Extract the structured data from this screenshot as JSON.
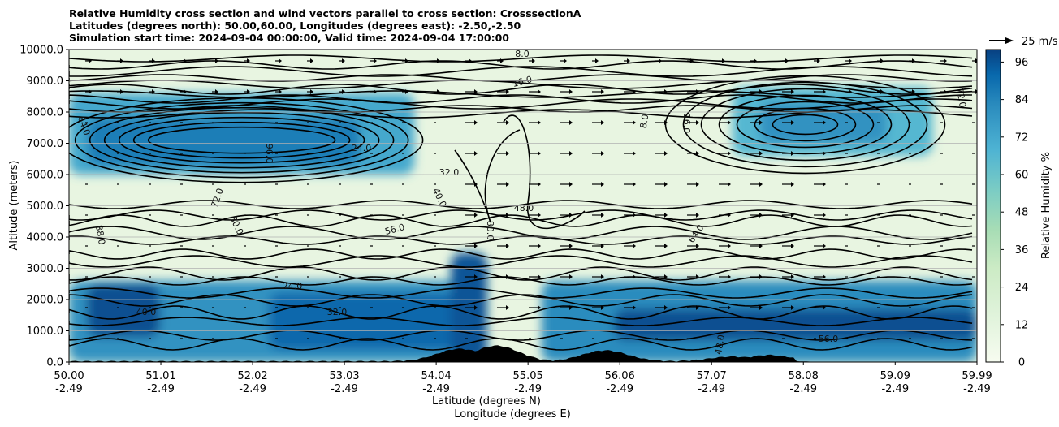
{
  "chart_data": {
    "type": "heatmap",
    "title_lines": [
      "Relative Humidity cross section and wind vectors parallel to cross section: CrosssectionA",
      "Latitudes (degrees north): 50.00,60.00, Longitudes (degrees east): -2.50,-2.50",
      "Simulation start time: 2024-09-04 00:00:00, Valid time: 2024-09-04 17:00:00"
    ],
    "xlabel": "Latitude (degrees N)",
    "xlabel2": "Longitude (degrees E)",
    "ylabel": "Altitude (meters)",
    "xlim": [
      50.0,
      59.99
    ],
    "ylim": [
      0,
      10000
    ],
    "x_ticks": [
      {
        "lat": "50.00",
        "lon": "-2.49"
      },
      {
        "lat": "51.01",
        "lon": "-2.49"
      },
      {
        "lat": "52.02",
        "lon": "-2.49"
      },
      {
        "lat": "53.03",
        "lon": "-2.49"
      },
      {
        "lat": "54.04",
        "lon": "-2.49"
      },
      {
        "lat": "55.05",
        "lon": "-2.49"
      },
      {
        "lat": "56.06",
        "lon": "-2.49"
      },
      {
        "lat": "57.07",
        "lon": "-2.49"
      },
      {
        "lat": "58.08",
        "lon": "-2.49"
      },
      {
        "lat": "59.09",
        "lon": "-2.49"
      },
      {
        "lat": "59.99",
        "lon": "-2.49"
      }
    ],
    "y_ticks": [
      "0.0",
      "1000.0",
      "2000.0",
      "3000.0",
      "4000.0",
      "5000.0",
      "6000.0",
      "7000.0",
      "8000.0",
      "9000.0",
      "10000.0"
    ],
    "grid": "horizontal",
    "colorbar": {
      "label": "Relative Humidity %",
      "ticks": [
        "0",
        "12",
        "24",
        "36",
        "48",
        "60",
        "72",
        "84",
        "96"
      ],
      "range": [
        0,
        100
      ],
      "colormap": "GnBu"
    },
    "wind_key": {
      "label": "25 m/s"
    },
    "contour_labels": [
      "8.0",
      "16.0",
      "24.0",
      "32.0",
      "40.0",
      "48.0",
      "56.0",
      "64.0",
      "72.0",
      "80.0",
      "88.0",
      "96.0"
    ],
    "rh_regions": [
      {
        "lat": [
          50.0,
          53.8
        ],
        "alt": [
          6000,
          8600
        ],
        "rh": 72
      },
      {
        "lat": [
          50.2,
          53.2
        ],
        "alt": [
          6300,
          7800
        ],
        "rh": 86
      },
      {
        "lat": [
          57.3,
          59.5
        ],
        "alt": [
          6600,
          8800
        ],
        "rh": 66
      },
      {
        "lat": [
          57.6,
          59.0
        ],
        "alt": [
          7000,
          8300
        ],
        "rh": 80
      },
      {
        "lat": [
          50.0,
          54.5
        ],
        "alt": [
          0,
          2600
        ],
        "rh": 80
      },
      {
        "lat": [
          50.2,
          51.0
        ],
        "alt": [
          800,
          2500
        ],
        "rh": 97
      },
      {
        "lat": [
          52.2,
          54.5
        ],
        "alt": [
          400,
          2200
        ],
        "rh": 92
      },
      {
        "lat": [
          54.2,
          54.6
        ],
        "alt": [
          0,
          3500
        ],
        "rh": 96
      },
      {
        "lat": [
          55.2,
          59.99
        ],
        "alt": [
          0,
          2600
        ],
        "rh": 82
      },
      {
        "lat": [
          56.0,
          59.99
        ],
        "alt": [
          700,
          1700
        ],
        "rh": 97
      }
    ],
    "terrain_peaks": [
      {
        "lat": 54.3,
        "alt": 400
      },
      {
        "lat": 54.7,
        "alt": 500
      },
      {
        "lat": 55.9,
        "alt": 350
      },
      {
        "lat": 57.3,
        "alt": 150
      },
      {
        "lat": 57.7,
        "alt": 200
      }
    ]
  }
}
